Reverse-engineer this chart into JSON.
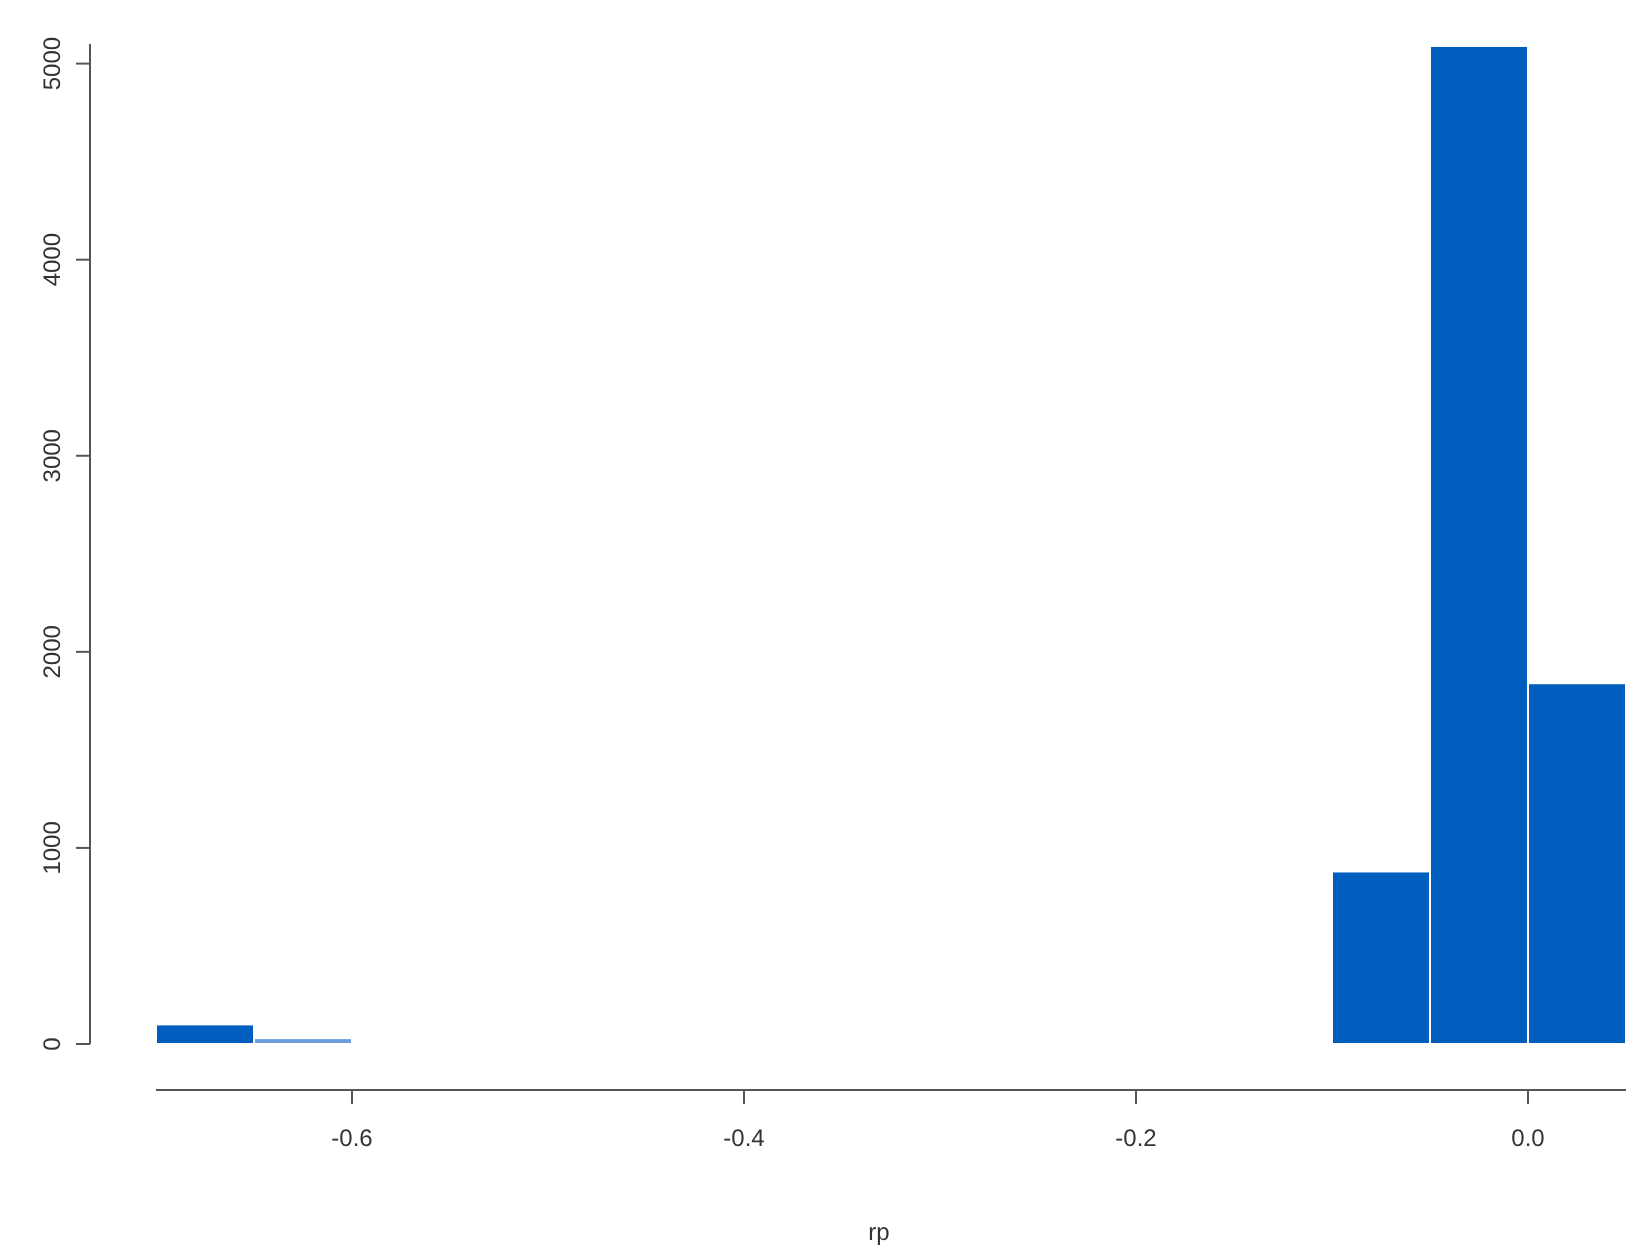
{
  "chart_data": {
    "type": "histogram",
    "xlabel": "rp",
    "bins": [
      -0.7,
      -0.65,
      -0.6,
      -0.55,
      -0.5,
      -0.45,
      -0.4,
      -0.35,
      -0.3,
      -0.25,
      -0.2,
      -0.15,
      -0.1,
      -0.05,
      0,
      0.05
    ],
    "values": [
      100,
      30,
      0,
      0,
      0,
      0,
      0,
      0,
      0,
      0,
      0,
      0,
      880,
      5090,
      1840
    ],
    "colors": [
      "#005ebf",
      "#6a9ee0",
      "#005ebf",
      "#005ebf",
      "#005ebf",
      "#005ebf",
      "#005ebf",
      "#005ebf",
      "#005ebf",
      "#005ebf",
      "#005ebf",
      "#005ebf",
      "#005ebf",
      "#005ebf",
      "#005ebf"
    ],
    "xlim": [
      -0.7,
      0.05
    ],
    "ylim": [
      0,
      5100
    ],
    "xticks": [
      {
        "value": -0.6,
        "label": "-0.6"
      },
      {
        "value": -0.4,
        "label": "-0.4"
      },
      {
        "value": -0.2,
        "label": "-0.2"
      },
      {
        "value": 0,
        "label": "0.0"
      }
    ],
    "yticks": [
      0,
      1000,
      2000,
      3000,
      4000,
      5000
    ]
  }
}
